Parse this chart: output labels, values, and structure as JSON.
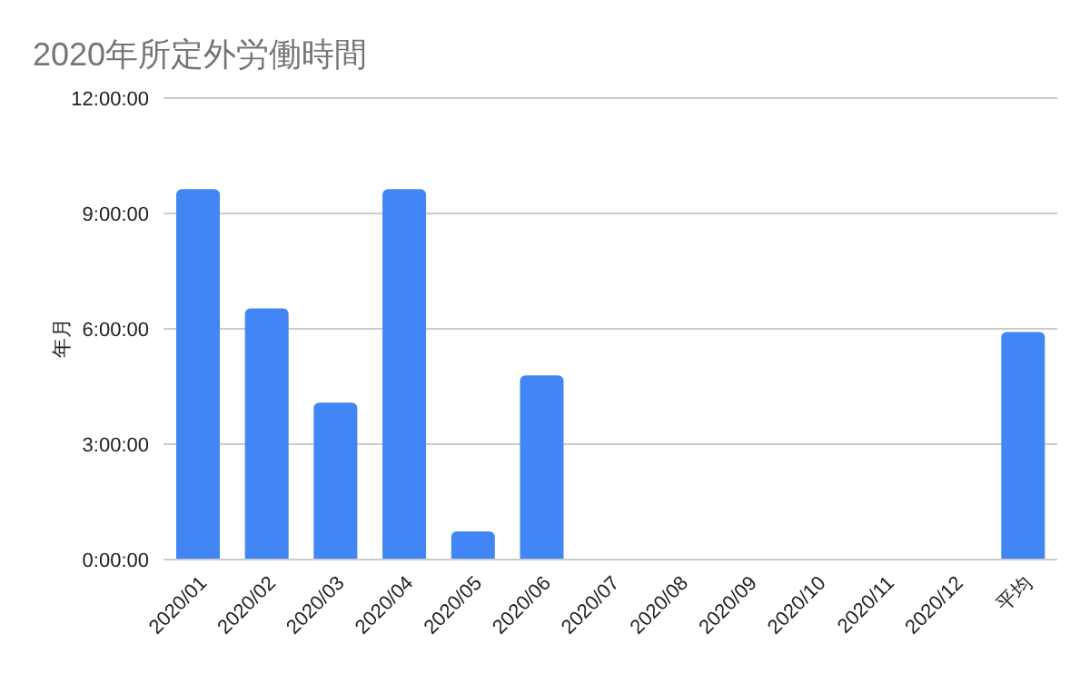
{
  "chart_data": {
    "type": "bar",
    "title": "2020年所定外労働時間",
    "ylabel": "年月",
    "categories": [
      "2020/01",
      "2020/02",
      "2020/03",
      "2020/04",
      "2020/05",
      "2020/06",
      "2020/07",
      "2020/08",
      "2020/09",
      "2020/10",
      "2020/11",
      "2020/12",
      "平均"
    ],
    "values": [
      9.63,
      6.53,
      4.08,
      9.63,
      0.73,
      4.79,
      null,
      null,
      null,
      null,
      null,
      null,
      5.92
    ],
    "color": "#4285f4",
    "ylim": [
      0,
      12
    ],
    "yticks": [
      {
        "value": 0,
        "label": "0:00:00"
      },
      {
        "value": 3,
        "label": "3:00:00"
      },
      {
        "value": 6,
        "label": "6:00:00"
      },
      {
        "value": 9,
        "label": "9:00:00"
      },
      {
        "value": 12,
        "label": "12:00:00"
      }
    ],
    "grid": "y",
    "legend": false
  }
}
